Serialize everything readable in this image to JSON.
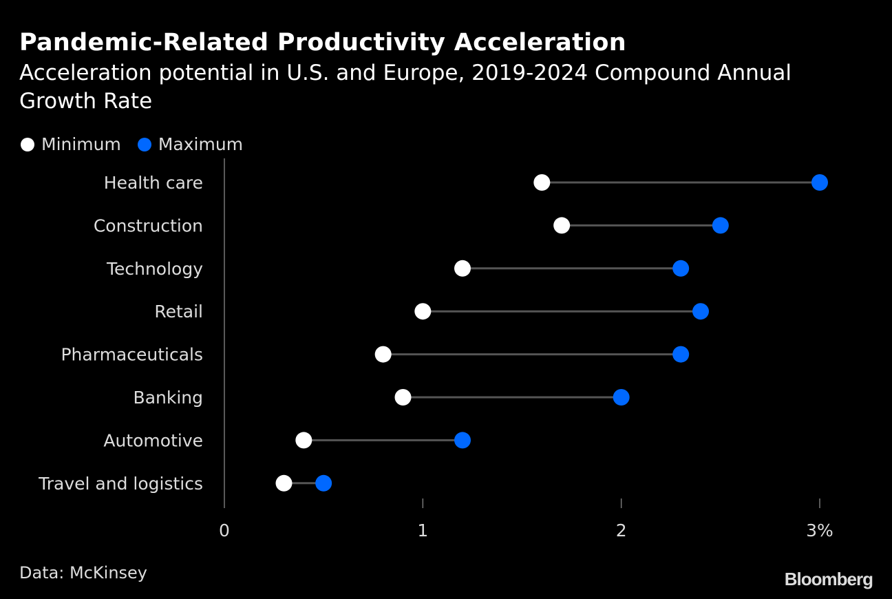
{
  "title": "Pandemic-Related Productivity Acceleration",
  "subtitle": "Acceleration potential in U.S. and Europe, 2019-2024 Compound Annual Growth Rate",
  "source": "Data: McKinsey",
  "logo": "Bloomberg",
  "chart_data": {
    "type": "dumbbell",
    "title": "Pandemic-Related Productivity Acceleration",
    "subtitle": "Acceleration potential in U.S. and Europe, 2019-2024 Compound Annual Growth Rate",
    "categories": [
      "Health care",
      "Construction",
      "Technology",
      "Retail",
      "Pharmaceuticals",
      "Banking",
      "Automotive",
      "Travel and logistics"
    ],
    "series": [
      {
        "name": "Minimum",
        "color": "#ffffff",
        "values": [
          1.6,
          1.7,
          1.2,
          1.0,
          0.8,
          0.9,
          0.4,
          0.3
        ]
      },
      {
        "name": "Maximum",
        "color": "#0068ff",
        "values": [
          3.0,
          2.5,
          2.3,
          2.4,
          2.3,
          2.0,
          1.2,
          0.5
        ]
      }
    ],
    "xlim": [
      0,
      3
    ],
    "xticks": [
      0,
      1,
      2,
      3
    ],
    "xtick_labels": [
      "0",
      "1",
      "2",
      "3%"
    ],
    "legend_placement": "top-left",
    "grid": false,
    "connector_color": "#555555"
  }
}
